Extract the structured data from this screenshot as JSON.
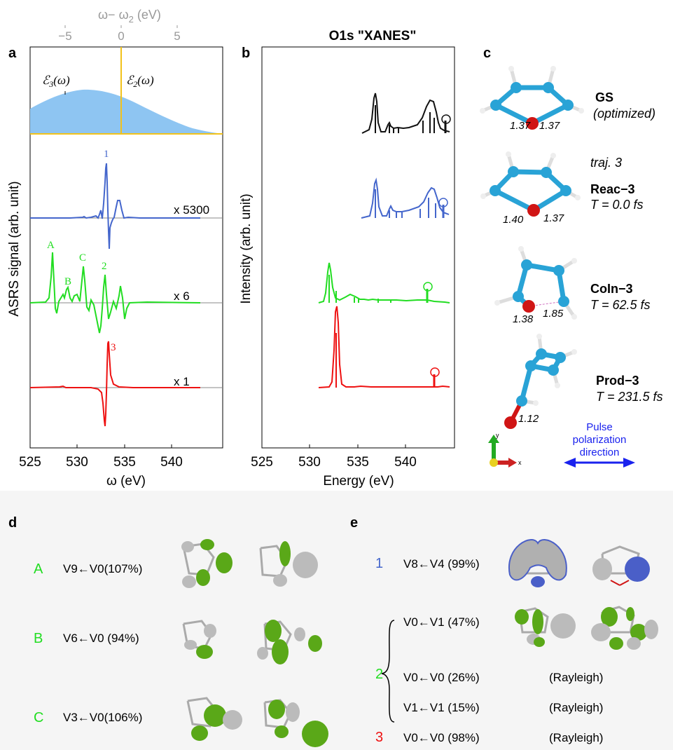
{
  "panel_labels": {
    "a": "a",
    "b": "b",
    "c": "c",
    "d": "d",
    "e": "e"
  },
  "panel_a": {
    "top_axis_label": "ω− ω",
    "top_axis_sub": "2",
    "top_axis_unit": " (eV)",
    "top_ticks": [
      "−5",
      "0",
      "5"
    ],
    "e3_label": "ℰ",
    "e3_sub": "3",
    "e3_arg": "(ω)",
    "e2_label": "ℰ",
    "e2_sub": "2",
    "e2_arg": "(ω)",
    "ylabel": "ASRS signal (arb. unit)",
    "xlabel": "ω (eV)",
    "x_ticks": [
      "525",
      "530",
      "535",
      "540"
    ],
    "multipliers": [
      "x 5300",
      "x 6",
      "x 1"
    ],
    "peak_labels": {
      "p1": "1",
      "pA": "A",
      "pB": "B",
      "pC": "C",
      "p2": "2",
      "p3": "3"
    }
  },
  "panel_b": {
    "title": "O1s \"XANES\"",
    "ylabel": "Intensity (arb. unit)",
    "xlabel": "Energy (eV)",
    "x_ticks": [
      "525",
      "530",
      "535",
      "540"
    ]
  },
  "panel_c": {
    "structures": [
      {
        "name": "GS",
        "sub": "(optimized)",
        "bond1": "1.37",
        "bond2": "1.37"
      },
      {
        "pre": "traj. 3",
        "name": "Reac−3",
        "sub": "T = 0.0 fs",
        "bond1": "1.40",
        "bond2": "1.37"
      },
      {
        "name": "CoIn−3",
        "sub": "T = 62.5 fs",
        "bond1": "1.38",
        "bond2": "1.85"
      },
      {
        "name": "Prod−3",
        "sub": "T = 231.5 fs",
        "bond1": "1.12"
      }
    ],
    "axis_y": "y",
    "axis_x": "x",
    "polarization": [
      "Pulse",
      "polarization",
      "direction"
    ]
  },
  "panel_d": {
    "rows": [
      {
        "label": "A",
        "transition": "V9←V0(107%)"
      },
      {
        "label": "B",
        "transition": "V6←V0 (94%)"
      },
      {
        "label": "C",
        "transition": "V3←V0(106%)"
      }
    ]
  },
  "panel_e": {
    "row1": {
      "label": "1",
      "transition": "V8←V4 (99%)"
    },
    "group2_label": "2",
    "group2": [
      {
        "transition": "V0←V1 (47%)",
        "note": ""
      },
      {
        "transition": "V0←V0 (26%)",
        "note": "(Rayleigh)"
      },
      {
        "transition": "V1←V1 (15%)",
        "note": "(Rayleigh)"
      }
    ],
    "row3": {
      "label": "3",
      "transition": "V0←V0 (98%)",
      "note": "(Rayleigh)"
    }
  },
  "colors": {
    "blue": "#4466cc",
    "green": "#22dd22",
    "red": "#ee1111",
    "fill": "#8ec5f2",
    "yellow": "#f2c21b",
    "gray": "#999999"
  },
  "chart_data": [
    {
      "type": "line",
      "title": "",
      "xlabel": "ω (eV)",
      "ylabel": "ASRS signal (arb. unit)",
      "xlim": [
        525,
        542
      ],
      "series": [
        {
          "name": "x 5300",
          "x": [
            525,
            529.5,
            530.5,
            531.2,
            531.5,
            531.6,
            531.7,
            531.8,
            532,
            532.5,
            532.8,
            533.2,
            534,
            540
          ],
          "y": [
            0,
            0.02,
            0.05,
            0.3,
            0.9,
            1.0,
            -0.8,
            -0.3,
            -0.1,
            0.1,
            0.35,
            0.05,
            0,
            0
          ]
        },
        {
          "name": "x 6",
          "x": [
            525,
            526.5,
            526.9,
            527.1,
            527.3,
            528,
            528.3,
            529.2,
            529.7,
            530,
            531.1,
            531.3,
            531.6,
            531.8,
            532.5,
            532.9,
            533.2,
            534,
            540
          ],
          "y": [
            0,
            0.02,
            1.0,
            0.3,
            -0.2,
            0.1,
            0.35,
            0.1,
            0.75,
            -0.1,
            -0.55,
            -0.3,
            0.75,
            -0.1,
            -0.15,
            0.35,
            -0.2,
            0.02,
            0
          ]
        },
        {
          "name": "x 1",
          "x": [
            525,
            528,
            531,
            531.4,
            531.6,
            531.8,
            532,
            532.5,
            534,
            540
          ],
          "y": [
            0,
            0.02,
            -0.05,
            -0.5,
            -0.9,
            1.0,
            0.3,
            0.05,
            0,
            0
          ]
        }
      ]
    },
    {
      "type": "line",
      "title": "O1s \"XANES\"",
      "xlabel": "Energy (eV)",
      "ylabel": "Intensity (arb. unit)",
      "xlim": [
        525,
        542
      ],
      "series": [
        {
          "name": "GS",
          "x": [
            534,
            534.7,
            535,
            535.3,
            536,
            538,
            539,
            540,
            540.3,
            540.8,
            541.5
          ],
          "y": [
            0,
            0.6,
            1.0,
            0.4,
            0.05,
            0.25,
            0.1,
            0.55,
            0.65,
            0.2,
            0.2
          ]
        },
        {
          "name": "Reac-3",
          "x": [
            534,
            534.7,
            535,
            535.3,
            536,
            538,
            539,
            540,
            540.3,
            540.8,
            541.5
          ],
          "y": [
            0,
            0.6,
            0.95,
            0.4,
            0.05,
            0.3,
            0.15,
            0.45,
            0.6,
            0.25,
            0.15
          ]
        },
        {
          "name": "CoIn-3",
          "x": [
            530,
            530.8,
            531,
            531.5,
            532,
            533.5,
            535,
            537,
            539.5,
            541
          ],
          "y": [
            0,
            0.8,
            1.0,
            0.5,
            0.15,
            0.25,
            0.1,
            0.05,
            0.15,
            0.02
          ]
        },
        {
          "name": "Prod-3",
          "x": [
            530,
            531.3,
            531.6,
            532,
            533,
            540.3,
            541
          ],
          "y": [
            0,
            0.95,
            1.0,
            0.1,
            0.02,
            0.05,
            0.02
          ]
        }
      ]
    }
  ]
}
